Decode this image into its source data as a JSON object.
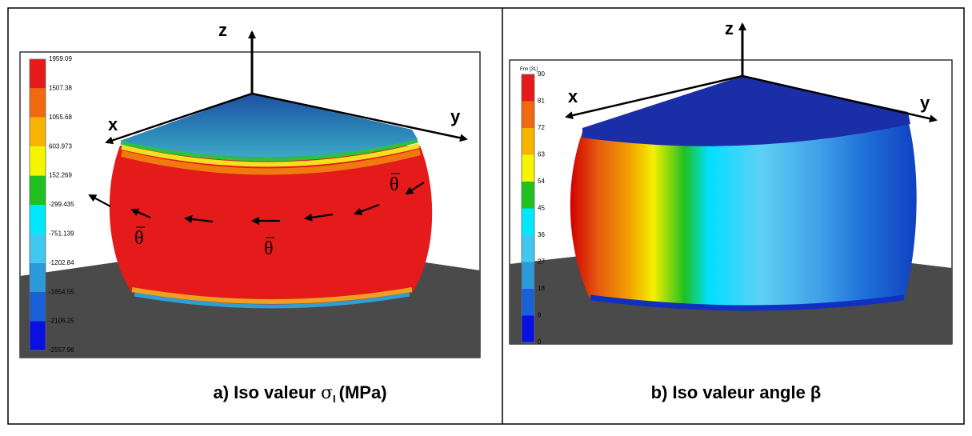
{
  "panel_a": {
    "axes": {
      "z": "z",
      "x": "x",
      "y": "y"
    },
    "theta_labels": [
      "θ",
      "θ",
      "θ"
    ],
    "colorbar": {
      "ticks": [
        1959.09,
        1507.38,
        1055.68,
        603.973,
        152.269,
        -299.435,
        -751.139,
        -1202.84,
        -1654.55,
        -2106.25,
        -2557.96
      ]
    },
    "caption": {
      "prefix": "a) Iso valeur ",
      "symbol": "σ",
      "subscript": "I",
      "suffix": "(MPa)"
    }
  },
  "panel_b": {
    "axes": {
      "z": "z",
      "x": "x",
      "y": "y"
    },
    "colorbar": {
      "title": "Fnn [31]",
      "ticks": [
        90,
        81,
        72,
        63,
        54,
        45,
        36,
        27,
        18,
        9,
        0
      ]
    },
    "caption": "b) Iso valeur angle β"
  }
}
